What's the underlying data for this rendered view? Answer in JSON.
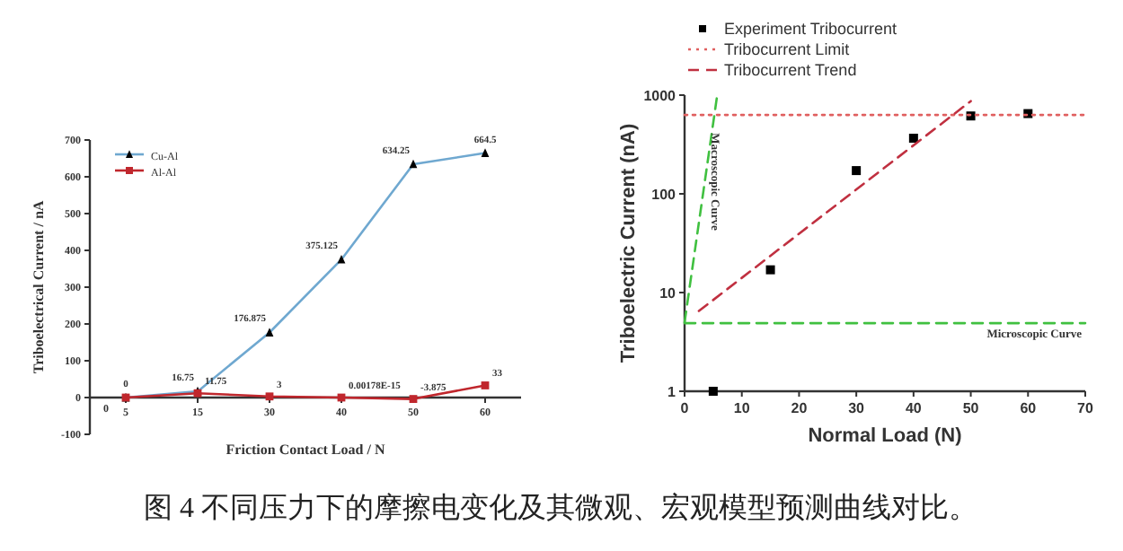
{
  "chart_data": [
    {
      "type": "line",
      "xlabel": "Friction Contact Load / N",
      "ylabel": "Triboelectrical Current / nA",
      "categories": [
        "5",
        "15",
        "30",
        "40",
        "50",
        "60"
      ],
      "ylim": [
        -100,
        700
      ],
      "yticks": [
        -100,
        0,
        100,
        200,
        300,
        400,
        500,
        600,
        700
      ],
      "legend": "top left",
      "grid": false,
      "annotations": [
        "0"
      ],
      "series": [
        {
          "name": "Cu-Al",
          "color": "#6fa8d0",
          "marker": "triangle",
          "values": [
            0,
            16.75,
            176.875,
            375.125,
            634.25,
            664.5
          ],
          "value_labels": [
            "0",
            "16.75",
            "176.875",
            "375.125",
            "634.25",
            "664.5"
          ]
        },
        {
          "name": "Al-Al",
          "color": "#c0272d",
          "marker": "square",
          "values": [
            0,
            11.75,
            3,
            1.78e-18,
            -3.875,
            33
          ],
          "value_labels": [
            null,
            "11.75",
            "3",
            "0.00178E-15",
            "-3.875",
            "33"
          ]
        }
      ]
    },
    {
      "type": "scatter",
      "xlabel": "Normal Load (N)",
      "ylabel": "Triboelectric Current (nA)",
      "log": "y",
      "xlim": [
        0,
        70
      ],
      "xticks": [
        0,
        10,
        20,
        30,
        40,
        50,
        60,
        70
      ],
      "ylim": [
        1,
        1000
      ],
      "yticks": [
        1,
        10,
        100,
        1000
      ],
      "legend": "top left",
      "grid": false,
      "annotations": [
        "图 4 不同压力下的摩擦电变化及其微观、宏观模型预测曲线对比。"
      ],
      "series": [
        {
          "name": "Experiment Tribocurrent",
          "type": "scatter",
          "marker": "square",
          "color": "#000000",
          "x": [
            5,
            15,
            30,
            40,
            50,
            60
          ],
          "values": [
            1,
            17,
            172,
            366,
            615,
            650
          ]
        },
        {
          "name": "Tribocurrent Limit",
          "type": "line",
          "line_style": "dotted",
          "color": "#e06060",
          "x": [
            0,
            70
          ],
          "values": [
            630,
            630
          ]
        },
        {
          "name": "Tribocurrent Trend",
          "type": "line",
          "line_style": "dashed",
          "color": "#c03040",
          "x": [
            2.5,
            50
          ],
          "values": [
            6.5,
            870
          ]
        },
        {
          "name": "Macroscopic Curve",
          "type": "line",
          "line_style": "dashed",
          "color": "#40c040",
          "x": [
            0,
            5.7
          ],
          "values": [
            5,
            1000
          ]
        },
        {
          "name": "Microscopic Curve",
          "type": "line",
          "line_style": "dashed",
          "color": "#40c040",
          "x": [
            0,
            70
          ],
          "values": [
            4.9,
            4.9
          ]
        }
      ]
    }
  ]
}
